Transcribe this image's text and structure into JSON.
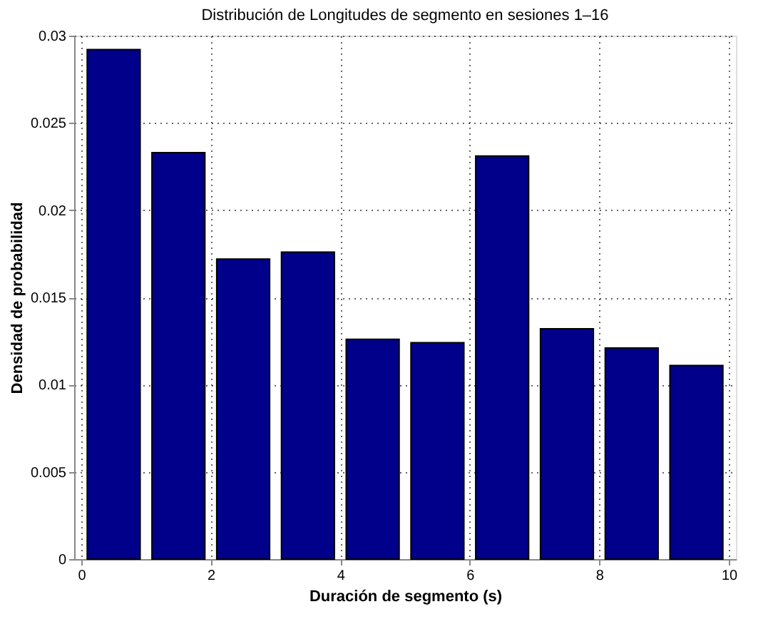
{
  "chart_data": {
    "type": "bar",
    "title": "Distribución de Longitudes de segmento en sesiones 1–16",
    "xlabel": "Duración de segmento (s)",
    "ylabel": "Densidad de probabilidad",
    "x": [
      0.5,
      1.5,
      2.5,
      3.5,
      4.5,
      5.5,
      6.5,
      7.5,
      8.5,
      9.5
    ],
    "values": [
      0.0292,
      0.0233,
      0.0172,
      0.0176,
      0.0126,
      0.0124,
      0.0231,
      0.0132,
      0.0121,
      0.0111
    ],
    "color": "#00008b",
    "xlim": [
      0,
      10
    ],
    "xticks": [
      0,
      2,
      4,
      6,
      8,
      10
    ],
    "ylim": [
      0,
      0.03
    ],
    "yticks": [
      0,
      0.005,
      0.01,
      0.015,
      0.02,
      0.025,
      0.03
    ],
    "grid": true
  }
}
